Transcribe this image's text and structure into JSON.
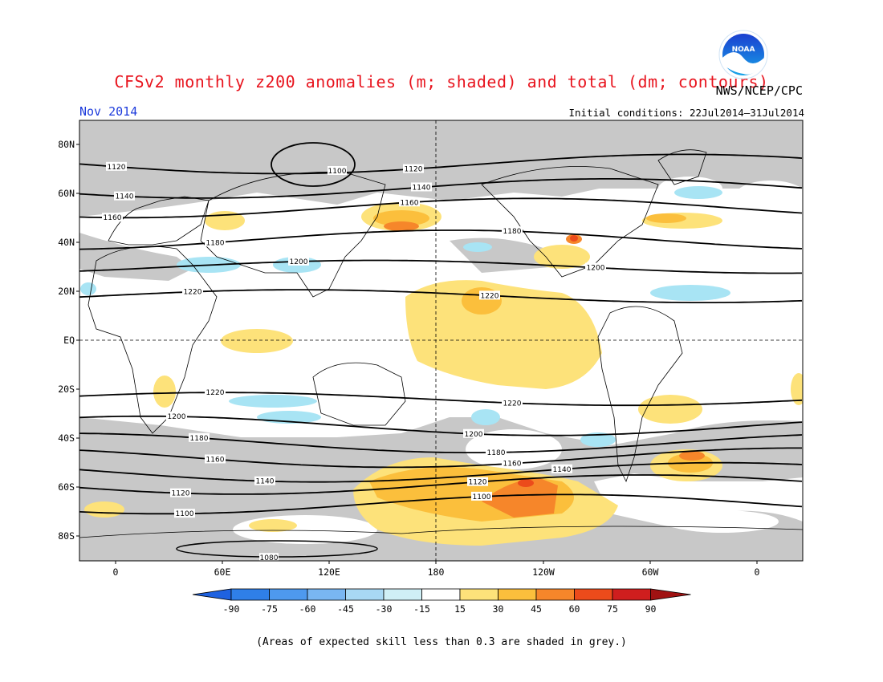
{
  "title": "CFSv2 monthly z200 anomalies (m; shaded) and total (dm; contours)",
  "agency": "NWS/NCEP/CPC",
  "logo_text": "NOAA",
  "month": "Nov 2014",
  "initial_conditions": "Initial conditions: 22Jul2014–31Jul2014",
  "footnote": "(Areas of expected skill less than 0.3 are shaded in grey.)",
  "map": {
    "lat_labels": [
      "80N",
      "60N",
      "40N",
      "20N",
      "EQ",
      "20S",
      "40S",
      "60S",
      "80S"
    ],
    "lon_labels": [
      "0",
      "60E",
      "120E",
      "180",
      "120W",
      "60W",
      "0"
    ]
  },
  "colorbar": {
    "ticks": [
      "-90",
      "-75",
      "-60",
      "-45",
      "-30",
      "-15",
      "15",
      "30",
      "45",
      "60",
      "75",
      "90"
    ],
    "colors": [
      "#1f62e0",
      "#2f7fe8",
      "#4e99ee",
      "#79b6f2",
      "#a8d8f4",
      "#cfeff6",
      "#ffffff",
      "#fde27a",
      "#fbbf3c",
      "#f6862a",
      "#ec4b1b",
      "#cf1e1e",
      "#a01212"
    ]
  },
  "contours": [
    {
      "label": "1120",
      "lat": 72
    },
    {
      "label": "1140",
      "lat": 62
    },
    {
      "label": "1160",
      "lat": 54
    },
    {
      "label": "1180",
      "lat": 41
    },
    {
      "label": "1200",
      "lat": 30
    },
    {
      "label": "1220",
      "lat": 18
    },
    {
      "label": "1220",
      "lat": -24
    },
    {
      "label": "1200",
      "lat": -35
    },
    {
      "label": "1180",
      "lat": -42
    },
    {
      "label": "1160",
      "lat": -48
    },
    {
      "label": "1140",
      "lat": -54
    },
    {
      "label": "1120",
      "lat": -59
    },
    {
      "label": "1100",
      "lat": -67
    },
    {
      "label": "1100",
      "lat": 80
    },
    {
      "label": "1080",
      "lat": -84
    }
  ]
}
